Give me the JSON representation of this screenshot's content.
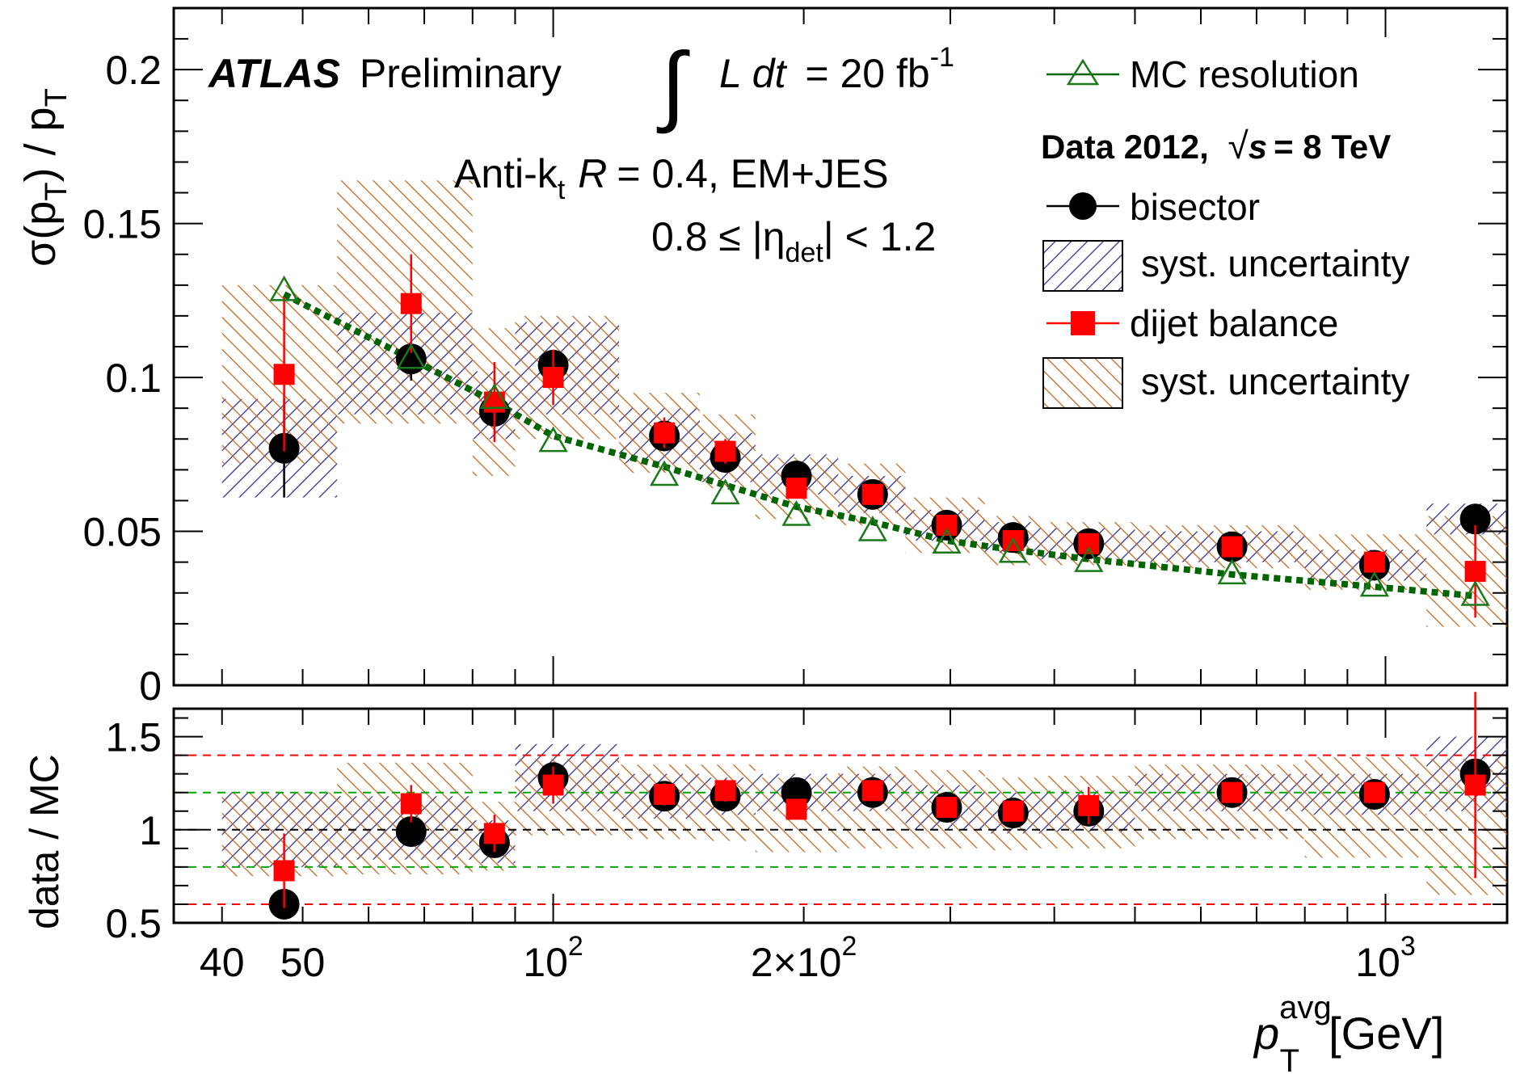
{
  "figure": {
    "experiment": "ATLAS",
    "status": "Preliminary",
    "integral_prefix": "∫",
    "lumi_symbol": "L dt",
    "lumi_value": "= 20 fb",
    "lumi_exponent": "-1",
    "algo_prefix": "Anti-k",
    "algo_subscript": "t",
    "algo_R": "R",
    "algo_suffix": "= 0.4, EM+JES",
    "eta_range_prefix": "0.8 ≤ |η",
    "eta_range_subscript": "det",
    "eta_range_suffix": "| < 1.2"
  },
  "legend": {
    "mc_label": "MC resolution",
    "data_header_bold": "Data 2012,",
    "sqrt_symbol": "√",
    "sqrt_var": "s",
    "energy": "= 8 TeV",
    "bisector_label": "bisector",
    "bisector_syst_label": "syst. uncertainty",
    "dijet_label": "dijet balance",
    "dijet_syst_label": "syst. uncertainty"
  },
  "colors": {
    "bisector": "#000000",
    "dijet": "#ff0000",
    "mc": "#006400",
    "mc_marker": "#1a7a1a",
    "bisector_syst_hatch": "#2b2b8c",
    "dijet_syst_hatch": "#c4641a",
    "ratio_ref_line": "#000000",
    "ratio_green_band": "#00aa00",
    "ratio_red_band": "#ff0000"
  },
  "chart_data": {
    "type": "scatter",
    "x_scale": "log",
    "xlim": [
      35,
      1400
    ],
    "x_axis_title": {
      "main": "p",
      "superscript": "avg",
      "subscript": "T",
      "unit": "[GeV]"
    },
    "x_tick_labels": [
      {
        "value": 40,
        "label": "40"
      },
      {
        "value": 50,
        "label": "50"
      },
      {
        "value": 100,
        "label": "10",
        "sup": "2"
      },
      {
        "value": 200,
        "label": "2×10",
        "sup": "2"
      },
      {
        "value": 1000,
        "label": "10",
        "sup": "3"
      }
    ],
    "top_panel": {
      "ylabel": {
        "main": "σ(p",
        "sub": "T",
        "mid": ") / p",
        "sub2": "T"
      },
      "ylim": [
        0,
        0.22
      ],
      "y_tick_labels": [
        {
          "value": 0,
          "label": "0"
        },
        {
          "value": 0.05,
          "label": "0.05"
        },
        {
          "value": 0.1,
          "label": "0.1"
        },
        {
          "value": 0.15,
          "label": "0.15"
        },
        {
          "value": 0.2,
          "label": "0.2"
        }
      ],
      "mc_resolution": {
        "x": [
          47.5,
          67.5,
          85,
          100,
          136,
          161,
          196,
          242,
          297,
          357,
          440,
          654,
          970,
          1282
        ],
        "y": [
          0.128,
          0.106,
          0.093,
          0.079,
          0.068,
          0.062,
          0.055,
          0.05,
          0.046,
          0.043,
          0.04,
          0.036,
          0.032,
          0.029
        ]
      },
      "mc_fit_curve": {
        "x": [
          47.5,
          67.5,
          85,
          100,
          136,
          161,
          196,
          242,
          297,
          357,
          440,
          654,
          970,
          1282
        ],
        "y": [
          0.127,
          0.106,
          0.092,
          0.081,
          0.071,
          0.065,
          0.058,
          0.053,
          0.047,
          0.044,
          0.041,
          0.036,
          0.032,
          0.029
        ]
      },
      "bisector": {
        "x": [
          47.5,
          67.5,
          85,
          100,
          136,
          161,
          196,
          242,
          297,
          357,
          440,
          654,
          970,
          1282
        ],
        "y": [
          0.077,
          0.106,
          0.089,
          0.104,
          0.081,
          0.074,
          0.068,
          0.062,
          0.052,
          0.048,
          0.046,
          0.045,
          0.039,
          0.054
        ],
        "err": [
          0.016,
          0.007,
          0.004,
          0.003,
          0.003,
          0.002,
          0.002,
          0.002,
          0.001,
          0.001,
          0.001,
          0.001,
          0.001,
          0.002
        ],
        "syst_lo": [
          0.061,
          0.088,
          0.08,
          0.088,
          0.072,
          0.066,
          0.062,
          0.056,
          0.047,
          0.043,
          0.041,
          0.04,
          0.034,
          0.049
        ],
        "syst_hi": [
          0.093,
          0.121,
          0.102,
          0.118,
          0.09,
          0.082,
          0.075,
          0.068,
          0.057,
          0.053,
          0.051,
          0.05,
          0.044,
          0.059
        ]
      },
      "dijet": {
        "x": [
          47.5,
          67.5,
          85,
          100,
          136,
          161,
          196,
          242,
          297,
          357,
          440,
          654,
          970,
          1282
        ],
        "y": [
          0.101,
          0.124,
          0.092,
          0.1,
          0.082,
          0.076,
          0.064,
          0.062,
          0.052,
          0.047,
          0.046,
          0.045,
          0.04,
          0.037
        ],
        "err": [
          0.025,
          0.016,
          0.013,
          0.009,
          0.005,
          0.004,
          0.003,
          0.003,
          0.002,
          0.002,
          0.002,
          0.002,
          0.002,
          0.015
        ],
        "syst_lo": [
          0.072,
          0.085,
          0.068,
          0.08,
          0.069,
          0.064,
          0.054,
          0.052,
          0.043,
          0.039,
          0.039,
          0.038,
          0.031,
          0.019
        ],
        "syst_hi": [
          0.13,
          0.164,
          0.116,
          0.12,
          0.095,
          0.088,
          0.074,
          0.072,
          0.061,
          0.055,
          0.053,
          0.052,
          0.049,
          0.055
        ]
      },
      "bin_edges": [
        40,
        55,
        80,
        90,
        120,
        150,
        175,
        220,
        265,
        330,
        385,
        500,
        800,
        1120,
        1400
      ]
    },
    "ratio_panel": {
      "ylabel": "data / MC",
      "ylim": [
        0.5,
        1.65
      ],
      "y_tick_labels": [
        {
          "value": 0.5,
          "label": "0.5"
        },
        {
          "value": 1,
          "label": "1"
        },
        {
          "value": 1.5,
          "label": "1.5"
        }
      ],
      "reference_lines": [
        0.6,
        0.8,
        1.0,
        1.2,
        1.4
      ],
      "bisector": {
        "y": [
          0.6,
          0.99,
          0.93,
          1.28,
          1.18,
          1.18,
          1.2,
          1.2,
          1.12,
          1.09,
          1.1,
          1.2,
          1.19,
          1.3
        ],
        "err": [
          0.03,
          0.03,
          0.03,
          0.02,
          0.02,
          0.02,
          0.02,
          0.02,
          0.02,
          0.02,
          0.02,
          0.02,
          0.02,
          0.02
        ],
        "syst_lo": [
          0.8,
          0.84,
          0.82,
          1.1,
          1.06,
          1.08,
          1.1,
          1.1,
          1.0,
          0.98,
          0.99,
          1.1,
          1.08,
          1.1
        ],
        "syst_hi": [
          1.2,
          1.18,
          1.05,
          1.46,
          1.3,
          1.28,
          1.3,
          1.3,
          1.24,
          1.2,
          1.21,
          1.3,
          1.3,
          1.5
        ]
      },
      "dijet": {
        "y": [
          0.78,
          1.14,
          0.98,
          1.24,
          1.19,
          1.21,
          1.11,
          1.21,
          1.12,
          1.1,
          1.13,
          1.2,
          1.2,
          1.24
        ],
        "err": [
          0.2,
          0.1,
          0.1,
          0.1,
          0.06,
          0.06,
          0.05,
          0.05,
          0.05,
          0.05,
          0.1,
          0.04,
          0.04,
          0.5
        ],
        "syst_lo": [
          0.75,
          0.76,
          0.78,
          0.97,
          0.95,
          0.94,
          0.88,
          0.9,
          0.9,
          0.89,
          0.9,
          0.95,
          0.85,
          0.65
        ],
        "syst_hi": [
          1.2,
          1.36,
          1.15,
          1.38,
          1.35,
          1.35,
          1.28,
          1.34,
          1.32,
          1.28,
          1.29,
          1.35,
          1.39,
          1.38
        ]
      }
    }
  }
}
